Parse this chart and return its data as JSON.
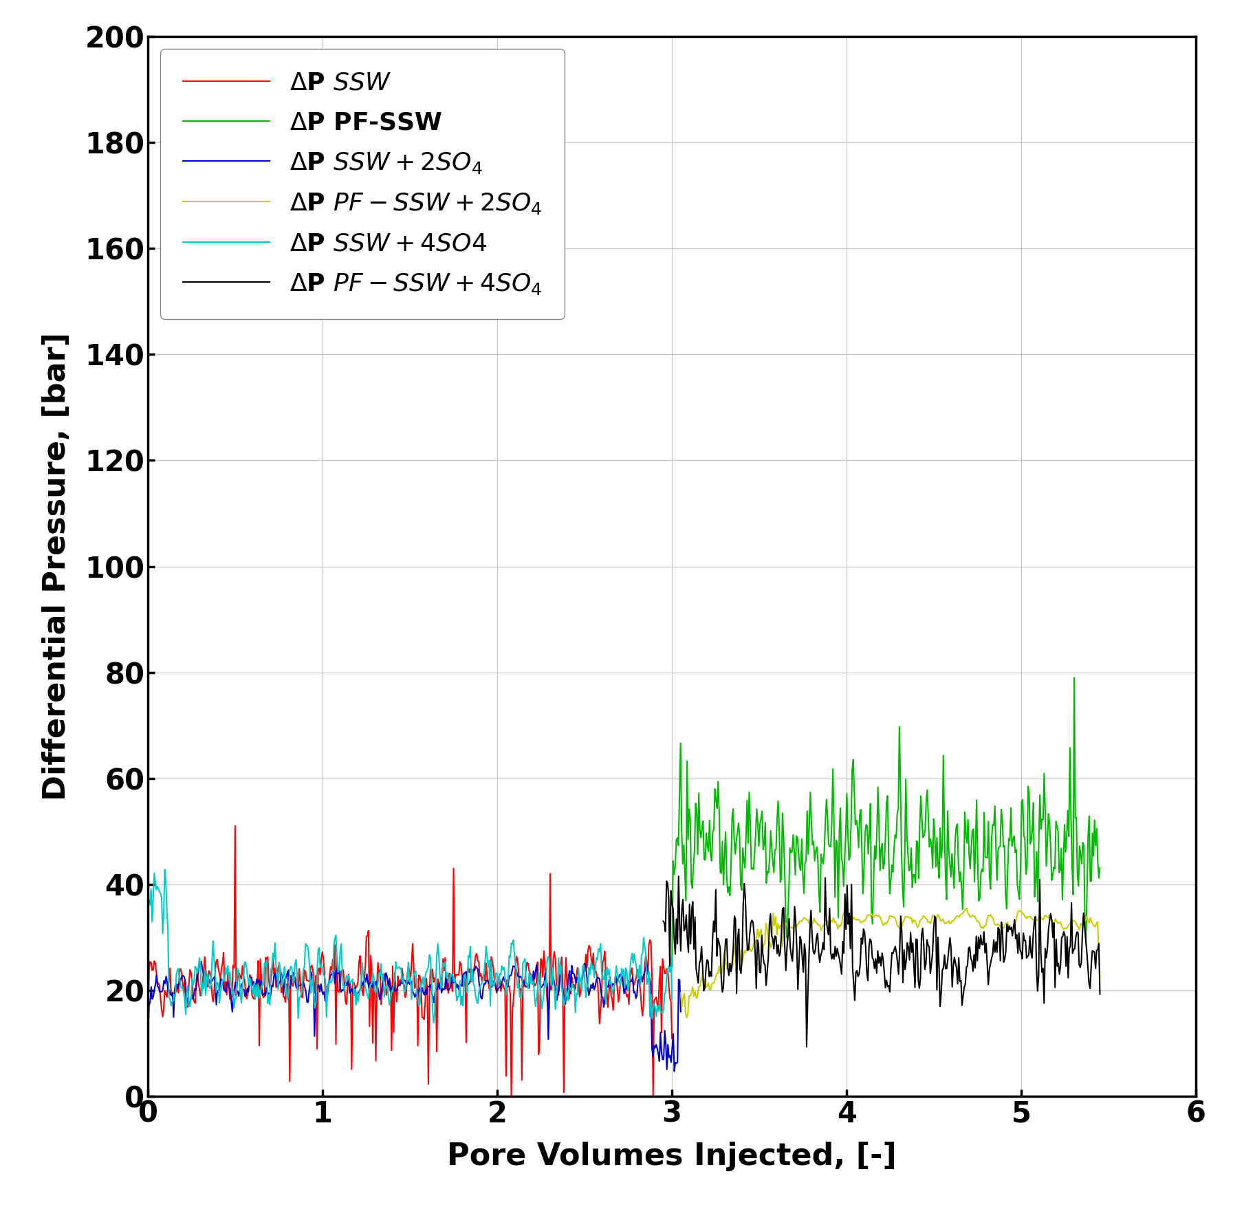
{
  "xlabel": "Pore Volumes Injected, [-]",
  "ylabel": "Differential Pressure, [bar]",
  "xlim": [
    0,
    6
  ],
  "ylim": [
    0,
    200
  ],
  "yticks": [
    0,
    20,
    40,
    60,
    80,
    100,
    120,
    140,
    160,
    180,
    200
  ],
  "xticks": [
    0,
    1,
    2,
    3,
    4,
    5,
    6
  ],
  "fontsize_axis_label": 32,
  "fontsize_tick": 30,
  "fontsize_legend": 26,
  "linewidth": 1.5,
  "background_color": "#ffffff",
  "grid_color": "#c8c8c8",
  "colors": {
    "red": "#ff0000",
    "green": "#00bb00",
    "blue": "#0000cc",
    "yellow": "#cccc00",
    "cyan": "#00cccc",
    "black": "#000000"
  }
}
